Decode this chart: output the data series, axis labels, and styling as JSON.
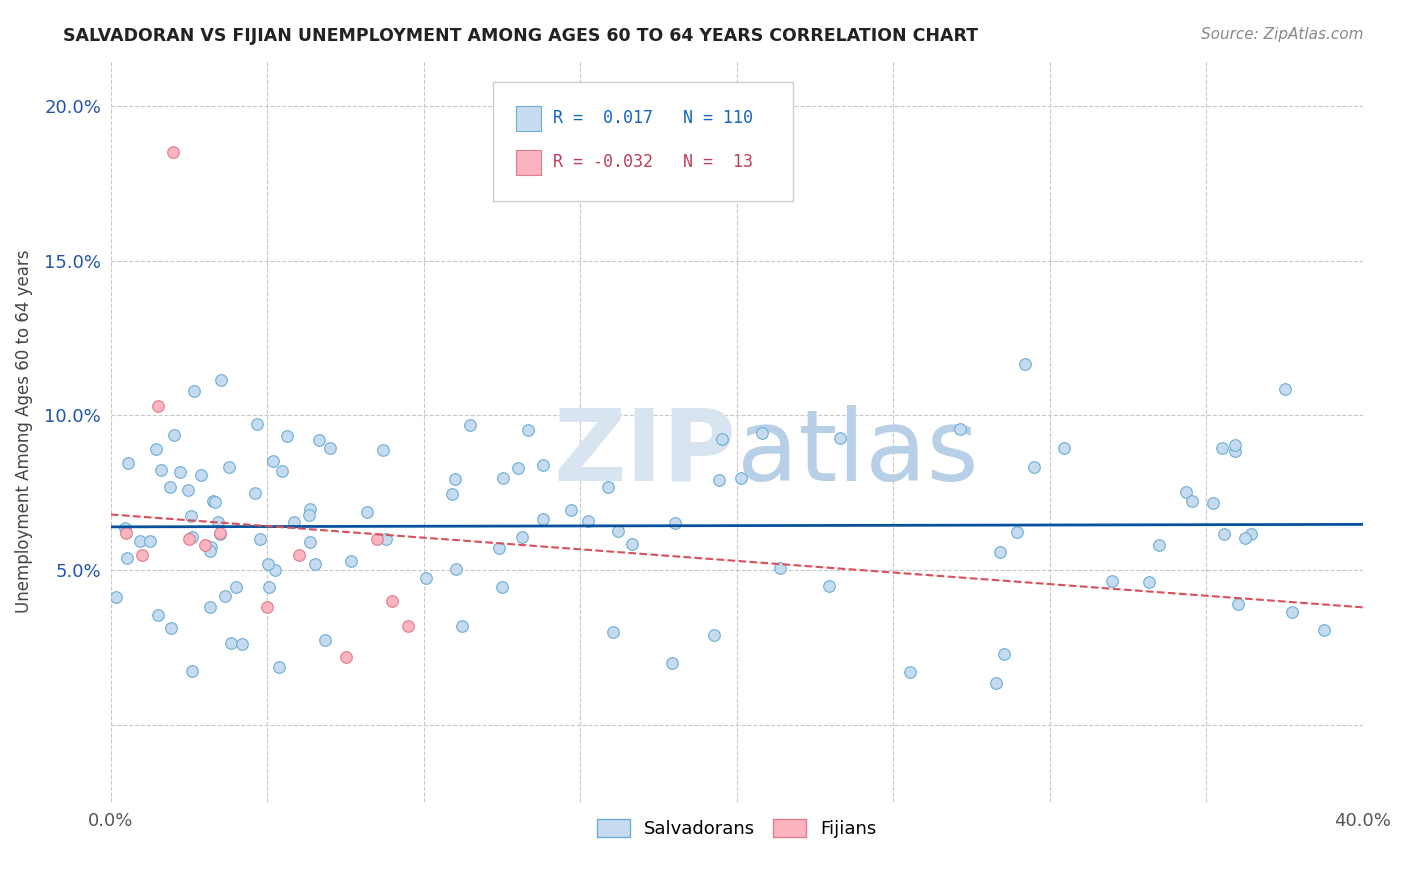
{
  "title": "SALVADORAN VS FIJIAN UNEMPLOYMENT AMONG AGES 60 TO 64 YEARS CORRELATION CHART",
  "source": "Source: ZipAtlas.com",
  "ylabel": "Unemployment Among Ages 60 to 64 years",
  "xlim": [
    0.0,
    0.4
  ],
  "ylim": [
    -0.025,
    0.215
  ],
  "r_salvadoran": 0.017,
  "n_salvadoran": 110,
  "r_fijian": -0.032,
  "n_fijian": 13,
  "salvadoran_color": "#c6dbef",
  "salvadoran_edge": "#6baed6",
  "fijian_color": "#fbb4c0",
  "fijian_edge": "#e07b8a",
  "trend_salvadoran_color": "#08519c",
  "trend_fijian_color": "#d94f5a",
  "watermark_color": "#d8e4f0",
  "grid_color": "#c8c8c8",
  "tick_color": "#555555",
  "title_color": "#222222",
  "source_color": "#888888",
  "legend_edge_color": "#cccccc"
}
